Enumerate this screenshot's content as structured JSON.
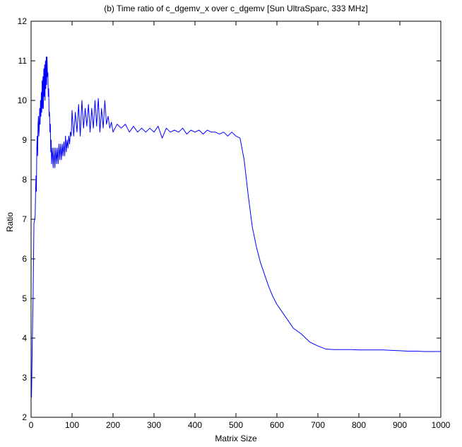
{
  "chart_data": {
    "type": "line",
    "title": "(b) Time ratio of c_dgemv_x over c_dgemv [Sun UltraSparc, 333 MHz]",
    "xlabel": "Matrix Size",
    "ylabel": "Ratio",
    "xlim": [
      0,
      1000
    ],
    "ylim": [
      2,
      12
    ],
    "x_ticks": [
      "0",
      "100",
      "200",
      "300",
      "400",
      "500",
      "600",
      "700",
      "800",
      "900",
      "1000"
    ],
    "y_ticks": [
      "2",
      "3",
      "4",
      "5",
      "6",
      "7",
      "8",
      "9",
      "10",
      "11",
      "12"
    ],
    "grid": false,
    "line_color": "#0000ff",
    "series": [
      {
        "x": [
          1,
          3,
          5,
          7,
          9,
          10,
          11,
          12,
          13,
          14,
          15,
          16,
          17,
          18,
          19,
          20,
          21,
          22,
          23,
          24,
          25,
          26,
          27,
          28,
          29,
          30,
          31,
          32,
          33,
          34,
          35,
          36,
          37,
          38,
          39,
          40,
          41,
          42,
          43,
          44,
          45,
          46,
          47,
          48,
          49,
          50,
          52,
          54,
          56,
          58,
          60,
          62,
          64,
          66,
          68,
          70,
          72,
          74,
          76,
          78,
          80,
          82,
          84,
          86,
          88,
          90,
          92,
          94,
          96,
          98,
          100,
          104,
          108,
          112,
          116,
          120,
          124,
          128,
          132,
          136,
          140,
          144,
          148,
          152,
          156,
          160,
          164,
          168,
          172,
          176,
          180,
          184,
          188,
          192,
          196,
          200,
          210,
          220,
          230,
          240,
          250,
          260,
          270,
          280,
          290,
          300,
          310,
          320,
          330,
          340,
          350,
          360,
          370,
          380,
          390,
          400,
          410,
          420,
          430,
          440,
          450,
          460,
          470,
          480,
          490,
          500,
          510,
          520,
          530,
          540,
          550,
          560,
          570,
          580,
          590,
          600,
          620,
          640,
          660,
          680,
          700,
          720,
          740,
          760,
          780,
          800,
          820,
          840,
          860,
          880,
          900,
          920,
          940,
          960,
          980,
          1000
        ],
        "values": [
          2.5,
          3.9,
          5.1,
          6.9,
          7.0,
          7.1,
          7.7,
          8.1,
          7.7,
          8.8,
          9.1,
          8.6,
          9.4,
          9.6,
          9.1,
          9.3,
          9.8,
          9.4,
          10.0,
          9.6,
          10.2,
          9.7,
          10.5,
          9.8,
          10.6,
          9.8,
          10.8,
          10.1,
          10.9,
          10.0,
          11.0,
          10.3,
          11.1,
          10.4,
          11.1,
          10.6,
          10.7,
          10.1,
          10.3,
          9.6,
          9.7,
          9.2,
          9.4,
          8.7,
          9.0,
          8.4,
          8.8,
          8.3,
          8.8,
          8.3,
          8.8,
          8.4,
          8.8,
          8.4,
          8.9,
          8.5,
          8.9,
          8.5,
          8.9,
          8.6,
          8.95,
          8.6,
          9.1,
          8.7,
          9.0,
          8.8,
          9.1,
          8.9,
          9.2,
          9.1,
          9.75,
          9.1,
          9.7,
          9.2,
          9.9,
          9.1,
          10.0,
          9.3,
          9.8,
          9.35,
          9.9,
          9.2,
          9.8,
          9.3,
          10.0,
          9.35,
          10.05,
          9.2,
          9.8,
          9.3,
          10.0,
          9.4,
          9.6,
          9.3,
          9.45,
          9.2,
          9.4,
          9.3,
          9.4,
          9.2,
          9.35,
          9.2,
          9.3,
          9.2,
          9.3,
          9.2,
          9.35,
          9.05,
          9.3,
          9.2,
          9.25,
          9.2,
          9.3,
          9.15,
          9.25,
          9.2,
          9.25,
          9.15,
          9.25,
          9.2,
          9.2,
          9.15,
          9.2,
          9.1,
          9.2,
          9.1,
          9.05,
          8.5,
          7.6,
          6.8,
          6.3,
          5.9,
          5.6,
          5.3,
          5.05,
          4.85,
          4.55,
          4.25,
          4.1,
          3.9,
          3.8,
          3.72,
          3.71,
          3.71,
          3.71,
          3.7,
          3.7,
          3.7,
          3.7,
          3.69,
          3.68,
          3.67,
          3.67,
          3.66,
          3.66,
          3.66
        ]
      }
    ]
  }
}
